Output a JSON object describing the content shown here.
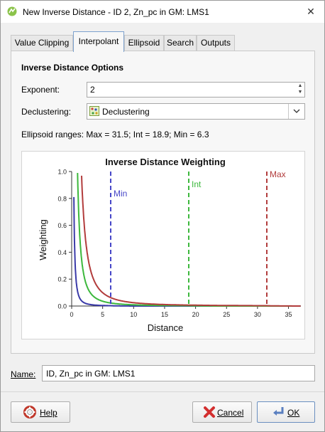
{
  "window": {
    "title": "New Inverse Distance - ID 2, Zn_pc in GM: LMS1",
    "close_glyph": "✕"
  },
  "tabs": [
    {
      "label": "Value Clipping",
      "active": false
    },
    {
      "label": "Interpolant",
      "active": true
    },
    {
      "label": "Ellipsoid",
      "active": false
    },
    {
      "label": "Search",
      "active": false
    },
    {
      "label": "Outputs",
      "active": false
    }
  ],
  "options": {
    "section_title": "Inverse Distance Options",
    "exponent_label": "Exponent:",
    "exponent_value": "2",
    "declustering_label": "Declustering:",
    "declustering_value": "Declustering",
    "ellipsoid_ranges": "Ellipsoid ranges:  Max = 31.5; Int = 18.9; Min = 6.3"
  },
  "chart_data": {
    "type": "line",
    "title": "Inverse Distance Weighting",
    "xlabel": "Distance",
    "ylabel": "Weighting",
    "xlim": [
      0,
      37
    ],
    "ylim": [
      0,
      1.0
    ],
    "x_ticks": [
      "0",
      "5",
      "10",
      "15",
      "20",
      "25",
      "30",
      "35"
    ],
    "y_ticks": [
      "0.0",
      "0.2",
      "0.4",
      "0.6",
      "0.8",
      "1.0"
    ],
    "series": [
      {
        "range": 6.3,
        "color": "#3a3aa8"
      },
      {
        "range": 18.9,
        "color": "#3cb83c"
      },
      {
        "range": 31.5,
        "color": "#b23c3c"
      }
    ],
    "annotations": [
      {
        "label": "Min",
        "x": 6.3,
        "color": "#4646c8"
      },
      {
        "label": "Int",
        "x": 18.9,
        "color": "#3cb83c"
      },
      {
        "label": "Max",
        "x": 31.5,
        "color": "#b23c3c"
      }
    ]
  },
  "name": {
    "label": "Name:",
    "value": "ID, Zn_pc in GM: LMS1"
  },
  "buttons": {
    "help": "Help",
    "cancel": "Cancel",
    "ok": "OK"
  }
}
